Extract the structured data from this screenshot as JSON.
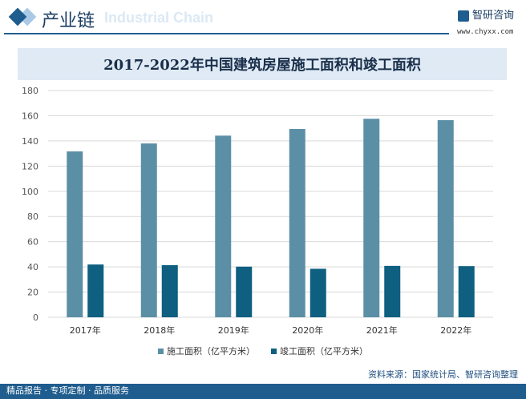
{
  "header": {
    "section": "产业链",
    "section_en": "Industrial Chain",
    "brand": "智研咨询",
    "url": "www.chyxx.com"
  },
  "footer": {
    "left": "精品报告 · 专项定制 · 品质服务",
    "source": "资料来源：国家统计局、智研咨询整理"
  },
  "colors": {
    "construction": "#5b8fa6",
    "completed": "#0e5f80"
  },
  "chart_data": {
    "type": "bar",
    "title": "2017-2022年中国建筑房屋施工面积和竣工面积",
    "categories": [
      "2017年",
      "2018年",
      "2019年",
      "2020年",
      "2021年",
      "2022年"
    ],
    "series": [
      {
        "name": "施工面积（亿平方米）",
        "values": [
          131.7,
          138.0,
          144.2,
          149.5,
          157.6,
          156.5
        ]
      },
      {
        "name": "竣工面积（亿平方米）",
        "values": [
          41.9,
          41.4,
          40.2,
          38.5,
          40.8,
          40.6
        ]
      }
    ],
    "ylim": [
      0,
      180
    ],
    "yticks": [
      0,
      20,
      40,
      60,
      80,
      100,
      120,
      140,
      160,
      180
    ],
    "grid": true,
    "legend": "bottom"
  }
}
